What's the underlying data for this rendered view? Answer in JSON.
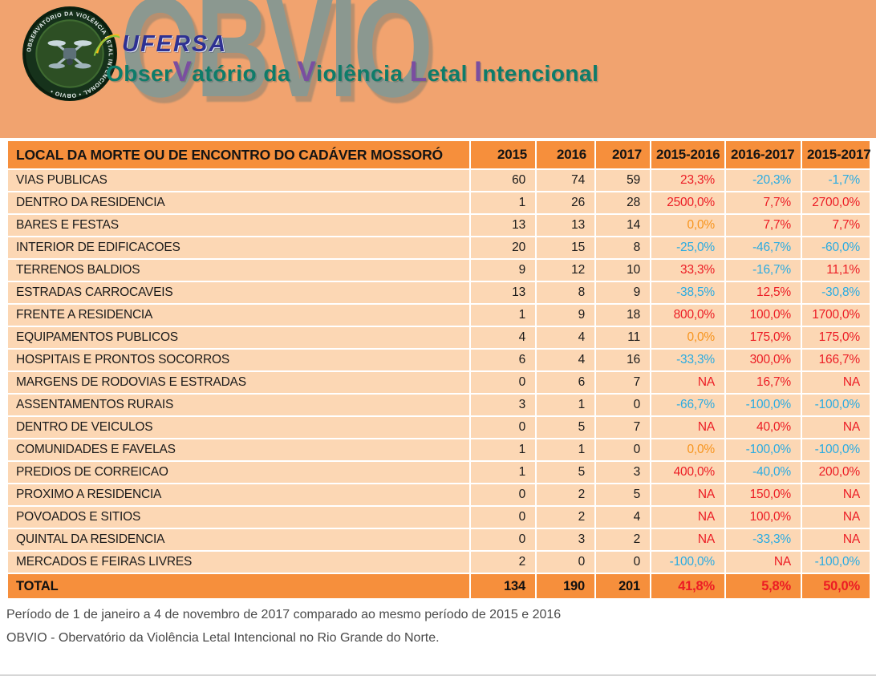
{
  "header": {
    "watermark": "OBVIO",
    "ufersa": "UFERSA",
    "logo_ring_text": "OBSERVATÓRIO DA VIOLÊNCIA LETAL INTENCIONAL • OBVIO •",
    "title_segments": [
      {
        "text": "Obser",
        "color": "teal"
      },
      {
        "text": "V",
        "color": "purple"
      },
      {
        "text": "atório da ",
        "color": "teal"
      },
      {
        "text": "V",
        "color": "purple"
      },
      {
        "text": "iolência ",
        "color": "teal"
      },
      {
        "text": "L",
        "color": "purple"
      },
      {
        "text": "etal ",
        "color": "teal"
      },
      {
        "text": "I",
        "color": "purple"
      },
      {
        "text": "ntencional",
        "color": "teal"
      }
    ]
  },
  "colors": {
    "band_bg": "#f1a36f",
    "header_bg": "#f68f3c",
    "row_bg": "#fcd7b4",
    "red": "#ec1c24",
    "blue": "#29abe2",
    "orange": "#f7941d",
    "teal": "#0e7c6a",
    "purple": "#7a4ea0",
    "ufersa": "#2e3192",
    "watermark": "#7e9795"
  },
  "chart_data": {
    "type": "table",
    "title": "LOCAL DA MORTE OU DE ENCONTRO DO CADÁVER MOSSORÓ",
    "columns": [
      "LOCAL DA MORTE OU DE ENCONTRO DO CADÁVER MOSSORÓ",
      "2015",
      "2016",
      "2017",
      "2015-2016",
      "2016-2017",
      "2015-2017"
    ],
    "rows": [
      [
        "VIAS PUBLICAS",
        "60",
        "74",
        "59",
        [
          "23,3%",
          "red"
        ],
        [
          "-20,3%",
          "blue"
        ],
        [
          "-1,7%",
          "blue"
        ]
      ],
      [
        "DENTRO DA RESIDENCIA",
        "1",
        "26",
        "28",
        [
          "2500,0%",
          "red"
        ],
        [
          "7,7%",
          "red"
        ],
        [
          "2700,0%",
          "red"
        ]
      ],
      [
        "BARES E FESTAS",
        "13",
        "13",
        "14",
        [
          "0,0%",
          "orange"
        ],
        [
          "7,7%",
          "red"
        ],
        [
          "7,7%",
          "red"
        ]
      ],
      [
        "INTERIOR DE EDIFICACOES",
        "20",
        "15",
        "8",
        [
          "-25,0%",
          "blue"
        ],
        [
          "-46,7%",
          "blue"
        ],
        [
          "-60,0%",
          "blue"
        ]
      ],
      [
        "TERRENOS BALDIOS",
        "9",
        "12",
        "10",
        [
          "33,3%",
          "red"
        ],
        [
          "-16,7%",
          "blue"
        ],
        [
          "11,1%",
          "red"
        ]
      ],
      [
        "ESTRADAS CARROCAVEIS",
        "13",
        "8",
        "9",
        [
          "-38,5%",
          "blue"
        ],
        [
          "12,5%",
          "red"
        ],
        [
          "-30,8%",
          "blue"
        ]
      ],
      [
        "FRENTE A RESIDENCIA",
        "1",
        "9",
        "18",
        [
          "800,0%",
          "red"
        ],
        [
          "100,0%",
          "red"
        ],
        [
          "1700,0%",
          "red"
        ]
      ],
      [
        "EQUIPAMENTOS PUBLICOS",
        "4",
        "4",
        "11",
        [
          "0,0%",
          "orange"
        ],
        [
          "175,0%",
          "red"
        ],
        [
          "175,0%",
          "red"
        ]
      ],
      [
        "HOSPITAIS E PRONTOS SOCORROS",
        "6",
        "4",
        "16",
        [
          "-33,3%",
          "blue"
        ],
        [
          "300,0%",
          "red"
        ],
        [
          "166,7%",
          "red"
        ]
      ],
      [
        "MARGENS DE RODOVIAS E ESTRADAS",
        "0",
        "6",
        "7",
        [
          "NA",
          "red"
        ],
        [
          "16,7%",
          "red"
        ],
        [
          "NA",
          "red"
        ]
      ],
      [
        "ASSENTAMENTOS RURAIS",
        "3",
        "1",
        "0",
        [
          "-66,7%",
          "blue"
        ],
        [
          "-100,0%",
          "blue"
        ],
        [
          "-100,0%",
          "blue"
        ]
      ],
      [
        "DENTRO DE VEICULOS",
        "0",
        "5",
        "7",
        [
          "NA",
          "red"
        ],
        [
          "40,0%",
          "red"
        ],
        [
          "NA",
          "red"
        ]
      ],
      [
        "COMUNIDADES E FAVELAS",
        "1",
        "1",
        "0",
        [
          "0,0%",
          "orange"
        ],
        [
          "-100,0%",
          "blue"
        ],
        [
          "-100,0%",
          "blue"
        ]
      ],
      [
        "PREDIOS DE CORREICAO",
        "1",
        "5",
        "3",
        [
          "400,0%",
          "red"
        ],
        [
          "-40,0%",
          "blue"
        ],
        [
          "200,0%",
          "red"
        ]
      ],
      [
        "PROXIMO A RESIDENCIA",
        "0",
        "2",
        "5",
        [
          "NA",
          "red"
        ],
        [
          "150,0%",
          "red"
        ],
        [
          "NA",
          "red"
        ]
      ],
      [
        "POVOADOS E SITIOS",
        "0",
        "2",
        "4",
        [
          "NA",
          "red"
        ],
        [
          "100,0%",
          "red"
        ],
        [
          "NA",
          "red"
        ]
      ],
      [
        "QUINTAL DA RESIDENCIA",
        "0",
        "3",
        "2",
        [
          "NA",
          "red"
        ],
        [
          "-33,3%",
          "blue"
        ],
        [
          "NA",
          "red"
        ]
      ],
      [
        "MERCADOS E FEIRAS LIVRES",
        "2",
        "0",
        "0",
        [
          "-100,0%",
          "blue"
        ],
        [
          "NA",
          "red"
        ],
        [
          "-100,0%",
          "blue"
        ]
      ]
    ],
    "total": [
      "TOTAL",
      "134",
      "190",
      "201",
      [
        "41,8%",
        "red"
      ],
      [
        "5,8%",
        "red"
      ],
      [
        "50,0%",
        "red"
      ]
    ]
  },
  "footer": {
    "line1": "Período de 1 de janeiro a 4 de novembro de 2017 comparado ao mesmo período de 2015 e 2016",
    "line2": "OBVIO - Obervatório da Violência Letal Intencional no Rio Grande do Norte."
  }
}
